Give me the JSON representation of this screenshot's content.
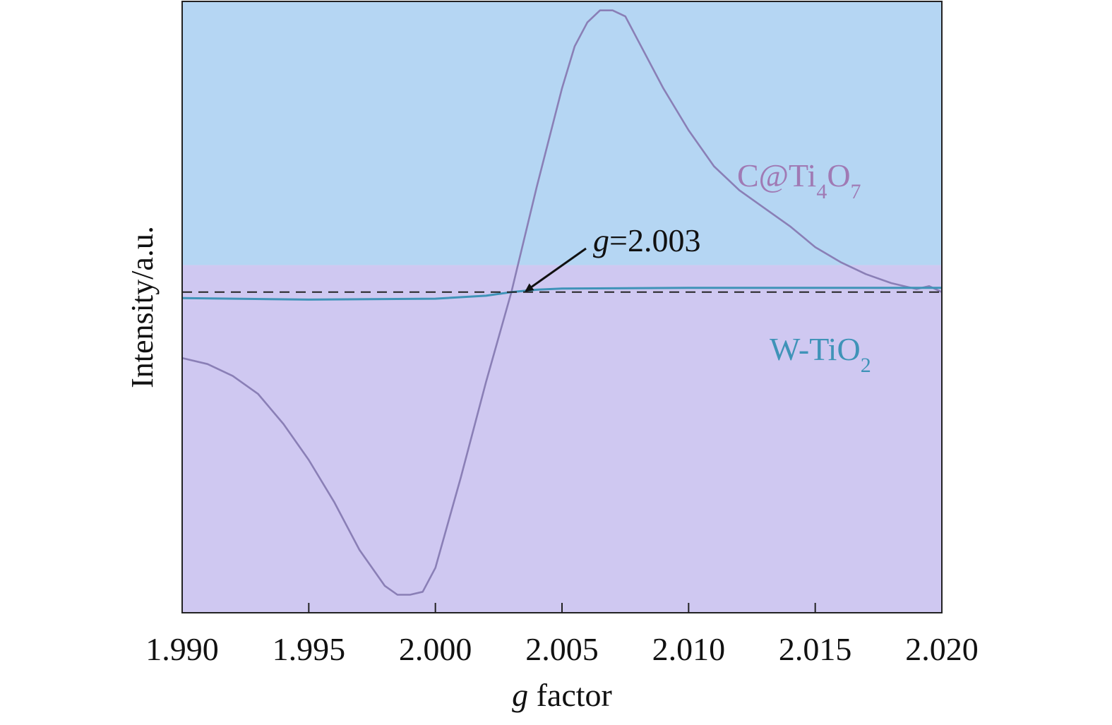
{
  "chart_data": {
    "type": "line",
    "xlabel_italic": "g",
    "xlabel_rest": " factor",
    "ylabel": "Intensity/a.u.",
    "xlim": [
      1.99,
      2.02
    ],
    "ylim": [
      -1.07,
      0.97
    ],
    "x_ticks": [
      1.99,
      1.995,
      2.0,
      2.005,
      2.01,
      2.015,
      2.02
    ],
    "x_tick_labels": [
      "1.990",
      "1.995",
      "2.000",
      "2.005",
      "2.010",
      "2.015",
      "2.020"
    ],
    "baseline_y": 0,
    "background": {
      "upper": "#b5d6f3",
      "lower": "#cfc8f1",
      "split_y": 0.09
    },
    "series": [
      {
        "name_main": "C@Ti",
        "name_sub1": "4",
        "name_mid": "O",
        "name_sub2": "7",
        "color": "#8a7fb6",
        "x": [
          1.99,
          1.991,
          1.992,
          1.993,
          1.994,
          1.995,
          1.996,
          1.997,
          1.998,
          1.9985,
          1.999,
          1.9995,
          2.0,
          2.001,
          2.002,
          2.003,
          2.004,
          2.005,
          2.0055,
          2.006,
          2.0065,
          2.007,
          2.0075,
          2.008,
          2.009,
          2.01,
          2.011,
          2.012,
          2.013,
          2.014,
          2.015,
          2.016,
          2.017,
          2.018,
          2.019,
          2.0195,
          2.02
        ],
        "y": [
          -0.22,
          -0.24,
          -0.28,
          -0.34,
          -0.44,
          -0.56,
          -0.7,
          -0.86,
          -0.98,
          -1.01,
          -1.01,
          -1.0,
          -0.92,
          -0.62,
          -0.3,
          0.0,
          0.35,
          0.68,
          0.82,
          0.9,
          0.94,
          0.94,
          0.92,
          0.84,
          0.68,
          0.54,
          0.42,
          0.34,
          0.28,
          0.22,
          0.15,
          0.1,
          0.06,
          0.03,
          0.01,
          0.02,
          0.0
        ]
      },
      {
        "name_main": "W-TiO",
        "name_sub": "2",
        "color": "#3f93b8",
        "x": [
          1.99,
          1.995,
          2.0,
          2.002,
          2.003,
          2.004,
          2.005,
          2.01,
          2.015,
          2.02
        ],
        "y": [
          -0.02,
          -0.025,
          -0.022,
          -0.012,
          0.0,
          0.008,
          0.012,
          0.014,
          0.014,
          0.014
        ]
      }
    ],
    "annotation": {
      "italic": "g",
      "text": "=2.003",
      "target_x": 2.0034,
      "target_y": 0.01
    }
  }
}
